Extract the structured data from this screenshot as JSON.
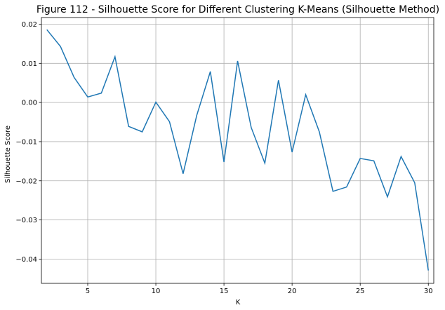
{
  "chart_data": {
    "type": "line",
    "title": "Figure 112 - Silhouette Score for Different Clustering K-Means (Silhouette Method)",
    "xlabel": "K",
    "ylabel": "Silhouette Score",
    "xlim": [
      1.6,
      30.4
    ],
    "ylim": [
      -0.0462,
      0.0217
    ],
    "xticks": [
      5,
      10,
      15,
      20,
      25,
      30
    ],
    "xtick_labels": [
      "5",
      "10",
      "15",
      "20",
      "25",
      "30"
    ],
    "yticks": [
      0.02,
      0.01,
      0.0,
      -0.01,
      -0.02,
      -0.03,
      -0.04
    ],
    "ytick_labels": [
      "0.02",
      "0.01",
      "0.00",
      "−0.01",
      "−0.02",
      "−0.03",
      "−0.04"
    ],
    "grid": true,
    "legend": "none",
    "line_color": "#1f77b4",
    "series": [
      {
        "x": [
          2,
          3,
          4,
          5,
          6,
          7,
          8,
          9,
          10,
          11,
          12,
          13,
          14,
          15,
          16,
          17,
          18,
          19,
          20,
          21,
          22,
          23,
          24,
          25,
          26,
          27,
          28,
          29,
          30
        ],
        "values": [
          0.0186,
          0.0143,
          0.0064,
          0.0014,
          0.0024,
          0.0117,
          -0.0061,
          -0.0075,
          0.0001,
          -0.0049,
          -0.0182,
          -0.0033,
          0.0079,
          -0.0152,
          0.0106,
          -0.0064,
          -0.0155,
          0.0057,
          -0.0127,
          0.002,
          -0.0075,
          -0.0227,
          -0.0216,
          -0.0143,
          -0.0149,
          -0.0241,
          -0.0138,
          -0.0205,
          -0.0429
        ]
      }
    ]
  }
}
